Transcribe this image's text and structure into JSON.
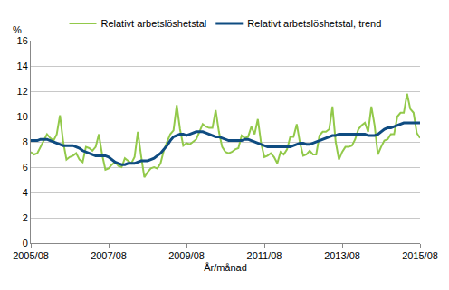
{
  "chart_data": {
    "type": "line",
    "ylabel": "%",
    "xlabel": "År/månad",
    "categories": [
      "2005/08",
      null,
      null,
      null,
      null,
      null,
      null,
      null,
      null,
      null,
      null,
      null,
      null,
      null,
      null,
      null,
      null,
      null,
      null,
      null,
      null,
      null,
      null,
      null,
      "2007/08",
      null,
      null,
      null,
      null,
      null,
      null,
      null,
      null,
      null,
      null,
      null,
      null,
      null,
      null,
      null,
      null,
      null,
      null,
      null,
      null,
      null,
      null,
      null,
      "2009/08",
      null,
      null,
      null,
      null,
      null,
      null,
      null,
      null,
      null,
      null,
      null,
      null,
      null,
      null,
      null,
      null,
      null,
      null,
      null,
      null,
      null,
      null,
      null,
      "2011/08",
      null,
      null,
      null,
      null,
      null,
      null,
      null,
      null,
      null,
      null,
      null,
      null,
      null,
      null,
      null,
      null,
      null,
      null,
      null,
      null,
      null,
      null,
      null,
      "2013/08",
      null,
      null,
      null,
      null,
      null,
      null,
      null,
      null,
      null,
      null,
      null,
      null,
      null,
      null,
      null,
      null,
      null,
      null,
      null,
      null,
      null,
      null,
      null,
      "2015/08"
    ],
    "series": [
      {
        "name": "Relativt arbetslöshetstal",
        "color": "#92c94a",
        "values": [
          7.2,
          7.0,
          7.1,
          7.6,
          8.0,
          8.6,
          8.3,
          8.1,
          8.6,
          10.1,
          8.0,
          6.6,
          6.8,
          6.9,
          7.1,
          6.6,
          6.4,
          7.6,
          7.5,
          7.3,
          7.6,
          8.6,
          7.0,
          5.8,
          5.9,
          6.2,
          6.4,
          6.1,
          6.0,
          6.7,
          6.5,
          6.3,
          6.8,
          8.8,
          6.9,
          5.2,
          5.6,
          5.9,
          6.0,
          5.9,
          6.3,
          7.3,
          8.0,
          8.6,
          8.9,
          10.9,
          9.0,
          7.7,
          7.9,
          7.8,
          8.0,
          8.2,
          8.8,
          9.4,
          9.2,
          9.1,
          9.1,
          10.5,
          8.8,
          7.6,
          7.2,
          7.1,
          7.2,
          7.4,
          7.5,
          8.5,
          8.3,
          8.4,
          9.2,
          8.6,
          9.8,
          7.9,
          6.8,
          6.9,
          7.1,
          6.8,
          6.3,
          7.2,
          7.0,
          7.4,
          8.4,
          8.4,
          9.4,
          7.9,
          6.9,
          7.0,
          7.3,
          7.0,
          7.0,
          8.5,
          8.8,
          8.8,
          9.0,
          10.8,
          8.0,
          6.6,
          7.2,
          7.6,
          7.6,
          7.7,
          8.2,
          9.0,
          9.3,
          9.5,
          8.8,
          10.8,
          9.3,
          7.0,
          7.6,
          8.1,
          8.2,
          8.6,
          8.6,
          10.0,
          10.3,
          10.3,
          11.8,
          10.6,
          10.3,
          8.7,
          8.3
        ]
      },
      {
        "name": "Relativt arbetslöshetstal, trend",
        "color": "#0f4c81",
        "values": [
          8.1,
          8.1,
          8.1,
          8.2,
          8.2,
          8.2,
          8.1,
          8.0,
          7.9,
          7.8,
          7.7,
          7.7,
          7.7,
          7.7,
          7.6,
          7.5,
          7.3,
          7.2,
          7.1,
          7.0,
          6.9,
          6.9,
          6.9,
          6.9,
          6.8,
          6.6,
          6.4,
          6.3,
          6.2,
          6.2,
          6.3,
          6.3,
          6.3,
          6.4,
          6.5,
          6.5,
          6.5,
          6.6,
          6.7,
          6.9,
          7.1,
          7.4,
          7.7,
          8.1,
          8.4,
          8.5,
          8.6,
          8.6,
          8.5,
          8.6,
          8.7,
          8.8,
          8.8,
          8.8,
          8.7,
          8.6,
          8.5,
          8.4,
          8.4,
          8.3,
          8.2,
          8.1,
          8.1,
          8.1,
          8.1,
          8.1,
          8.2,
          8.2,
          8.1,
          8.0,
          7.9,
          7.8,
          7.7,
          7.6,
          7.6,
          7.6,
          7.6,
          7.6,
          7.6,
          7.6,
          7.6,
          7.7,
          7.8,
          7.9,
          7.9,
          7.8,
          7.8,
          7.9,
          8.0,
          8.1,
          8.2,
          8.3,
          8.4,
          8.5,
          8.5,
          8.6,
          8.6,
          8.6,
          8.6,
          8.6,
          8.6,
          8.6,
          8.6,
          8.6,
          8.5,
          8.5,
          8.5,
          8.6,
          8.8,
          9.0,
          9.1,
          9.1,
          9.2,
          9.3,
          9.4,
          9.5,
          9.5,
          9.5,
          9.5,
          9.5,
          9.5
        ]
      }
    ],
    "ylim": [
      0,
      16
    ],
    "yticks": [
      0,
      2,
      4,
      6,
      8,
      10,
      12,
      14,
      16
    ],
    "grid": true,
    "legend": "top"
  }
}
